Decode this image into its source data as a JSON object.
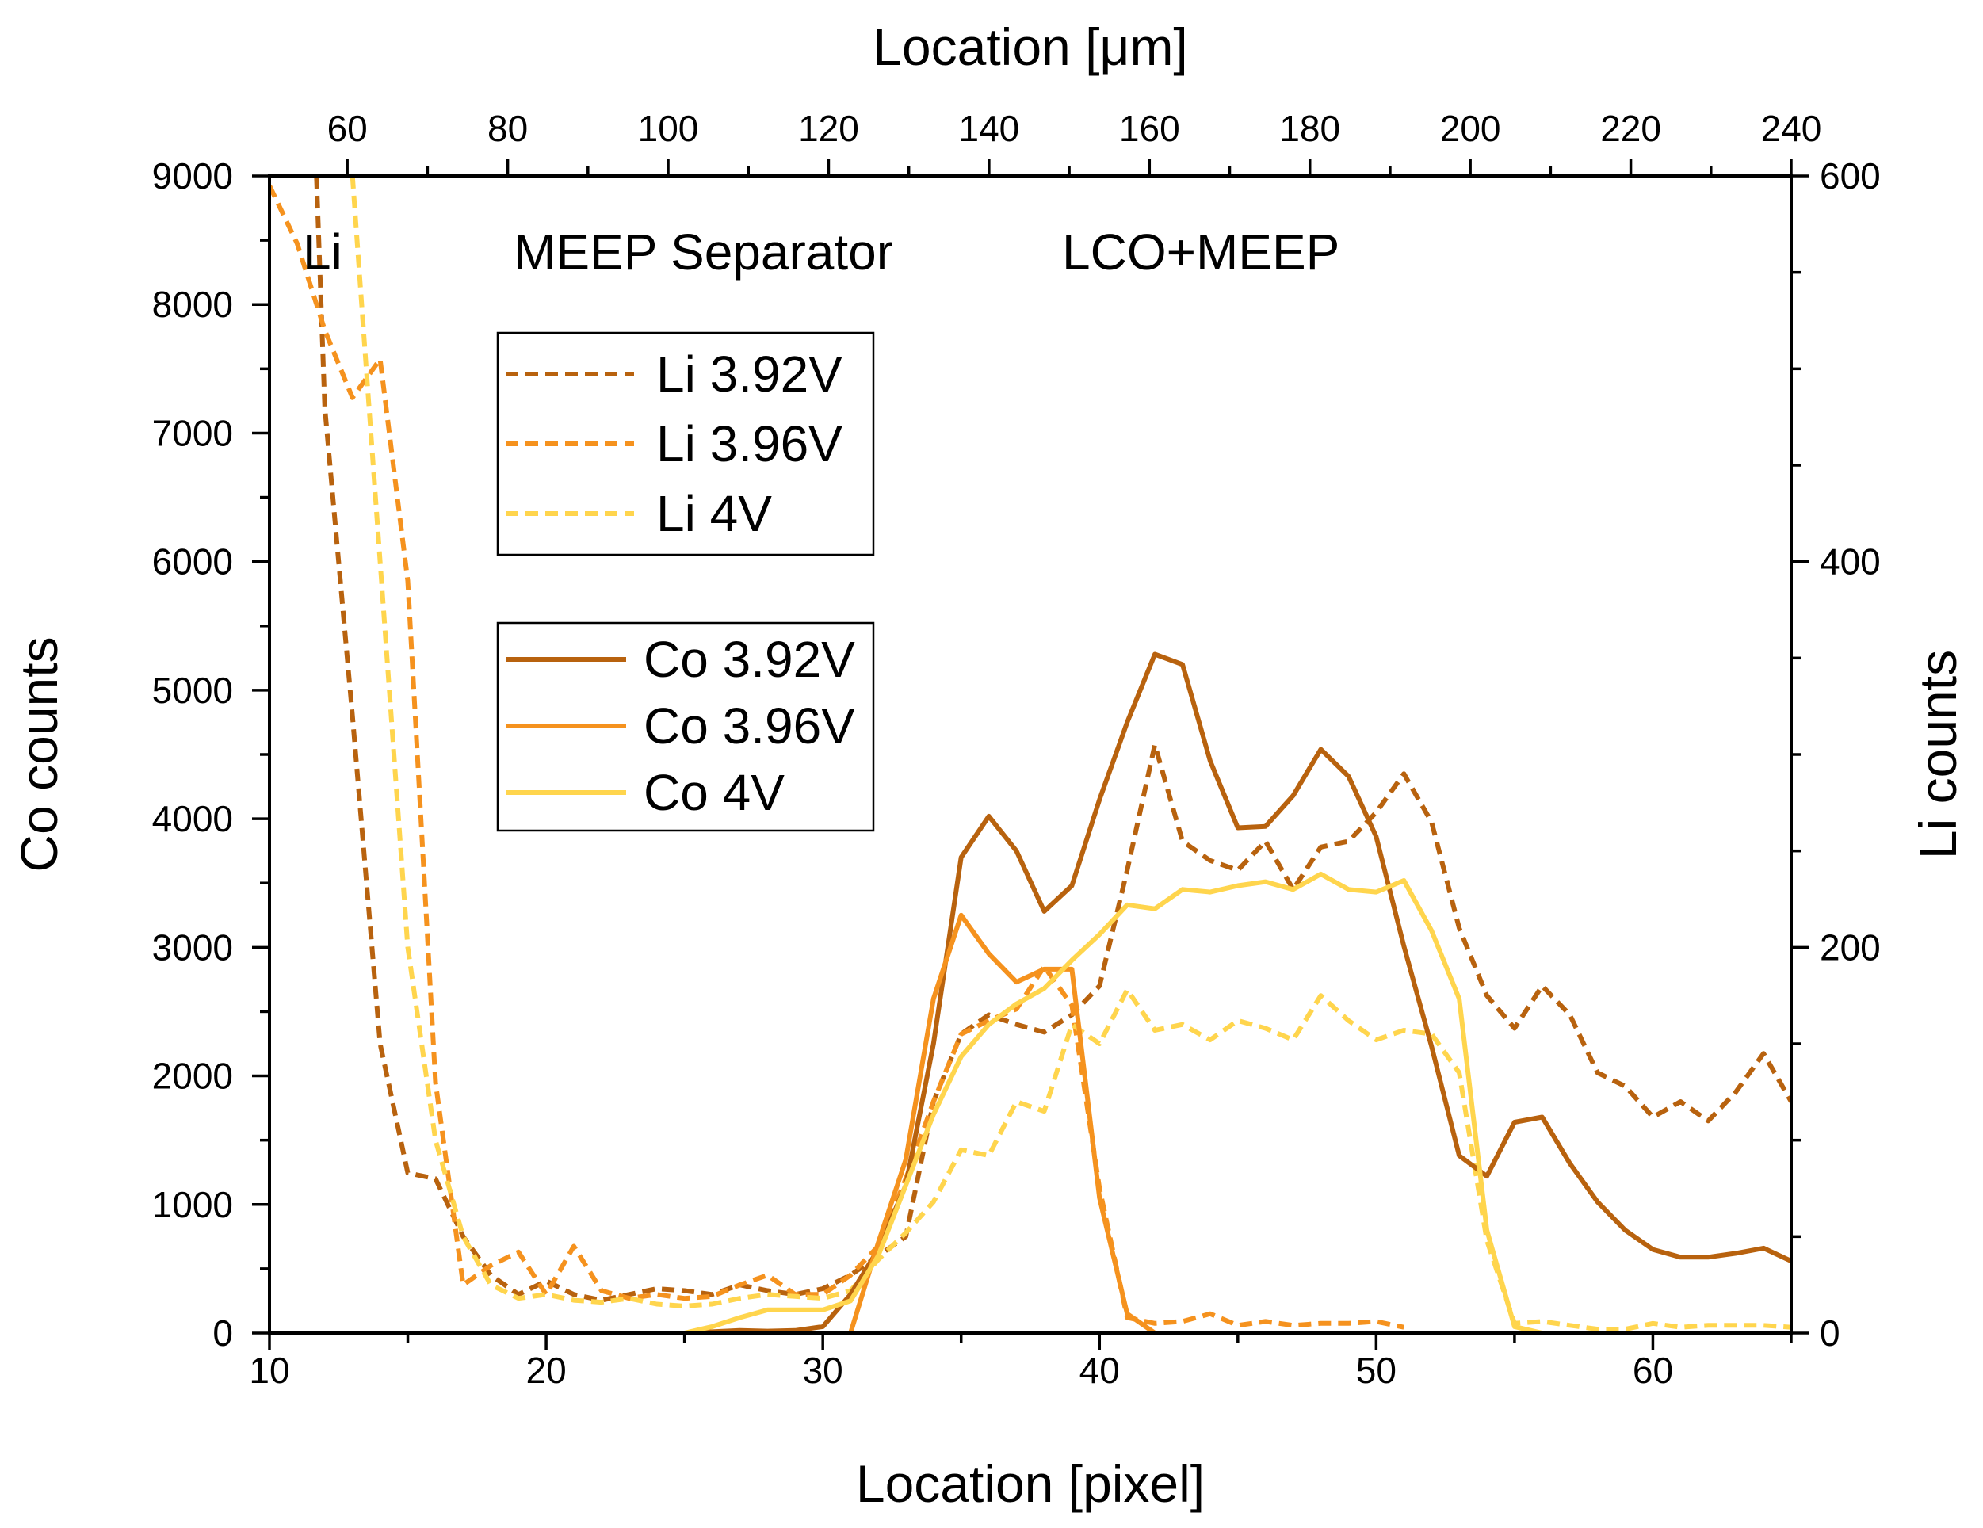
{
  "chart_data": {
    "type": "line",
    "xlabel": "Location [pixel]",
    "x2label": "Location [μm]",
    "ylabel": "Co counts",
    "y2label": "Li counts",
    "xlim": [
      10,
      65
    ],
    "x2lim": [
      50.3,
      240
    ],
    "ylim": [
      0,
      9000
    ],
    "y2lim": [
      0,
      600
    ],
    "x_ticks": [
      "10",
      "20",
      "30",
      "40",
      "50",
      "60"
    ],
    "x2_ticks": [
      "60",
      "80",
      "100",
      "120",
      "140",
      "160",
      "180",
      "200",
      "220",
      "240"
    ],
    "y_ticks": [
      "0",
      "1000",
      "2000",
      "3000",
      "4000",
      "5000",
      "6000",
      "7000",
      "8000",
      "9000"
    ],
    "y2_ticks": [
      "0",
      "200",
      "400",
      "600"
    ],
    "region_labels": [
      "Li",
      "MEEP Separator",
      "LCO+MEEP"
    ],
    "colors": {
      "v392": "#b8620e",
      "v396": "#f5921e",
      "v4": "#ffd54d"
    },
    "legend_li": [
      {
        "label": "Li 3.92V",
        "color": "#b8620e",
        "style": "dashed"
      },
      {
        "label": "Li 3.96V",
        "color": "#f5921e",
        "style": "dashed"
      },
      {
        "label": "Li 4V",
        "color": "#ffd54d",
        "style": "dashed"
      }
    ],
    "legend_co": [
      {
        "label": "Co 3.92V",
        "color": "#b8620e",
        "style": "solid"
      },
      {
        "label": "Co 3.96V",
        "color": "#f5921e",
        "style": "solid"
      },
      {
        "label": "Co 4V",
        "color": "#ffd54d",
        "style": "solid"
      }
    ],
    "series": [
      {
        "name": "Co 3.92V",
        "axis": "left",
        "color": "#b8620e",
        "style": "solid",
        "x": [
          10,
          11,
          12,
          13,
          14,
          15,
          16,
          17,
          18,
          19,
          20,
          21,
          22,
          23,
          24,
          25,
          26,
          27,
          28,
          29,
          30,
          31,
          32,
          33,
          34,
          35,
          36,
          37,
          38,
          39,
          40,
          41,
          42,
          43,
          44,
          45,
          46,
          47,
          48,
          49,
          50,
          51,
          52,
          53,
          54,
          55,
          56,
          57,
          58,
          59,
          60,
          61,
          62,
          63,
          64,
          65
        ],
        "y": [
          0,
          0,
          0,
          0,
          0,
          0,
          0,
          0,
          0,
          0,
          0,
          0,
          0,
          0,
          0,
          0,
          10,
          20,
          15,
          20,
          50,
          300,
          650,
          1150,
          2250,
          3700,
          4020,
          3750,
          3280,
          3480,
          4150,
          4750,
          5280,
          5200,
          4450,
          3930,
          3940,
          4180,
          4540,
          4330,
          3860,
          3010,
          2230,
          1380,
          1220,
          1640,
          1680,
          1320,
          1020,
          800,
          650,
          590,
          590,
          620,
          660,
          560
        ]
      },
      {
        "name": "Co 3.96V",
        "axis": "left",
        "color": "#f5921e",
        "style": "solid",
        "x": [
          10,
          11,
          12,
          13,
          14,
          15,
          16,
          17,
          18,
          19,
          20,
          21,
          22,
          23,
          24,
          25,
          26,
          27,
          28,
          29,
          30,
          31,
          32,
          33,
          34,
          35,
          36,
          37,
          38,
          39,
          40,
          41,
          42,
          43,
          44,
          45,
          46,
          47,
          48,
          49,
          50,
          51
        ],
        "y": [
          0,
          0,
          0,
          0,
          0,
          0,
          0,
          0,
          0,
          0,
          0,
          0,
          0,
          0,
          0,
          0,
          0,
          0,
          0,
          0,
          0,
          0,
          700,
          1350,
          2600,
          3250,
          2950,
          2730,
          2830,
          2830,
          1050,
          150,
          0,
          0,
          0,
          0,
          0,
          0,
          0,
          0,
          0,
          0
        ]
      },
      {
        "name": "Co 4V",
        "axis": "left",
        "color": "#ffd54d",
        "style": "solid",
        "x": [
          10,
          11,
          12,
          13,
          14,
          15,
          16,
          17,
          18,
          19,
          20,
          21,
          22,
          23,
          24,
          25,
          26,
          27,
          28,
          29,
          30,
          31,
          32,
          33,
          34,
          35,
          36,
          37,
          38,
          39,
          40,
          41,
          42,
          43,
          44,
          45,
          46,
          47,
          48,
          49,
          50,
          51,
          52,
          53,
          54,
          55,
          56,
          57,
          58,
          59,
          60,
          61,
          62,
          63,
          64,
          65
        ],
        "y": [
          0,
          0,
          0,
          0,
          0,
          0,
          0,
          0,
          0,
          0,
          0,
          0,
          0,
          0,
          0,
          0,
          50,
          120,
          180,
          180,
          180,
          250,
          600,
          1150,
          1700,
          2150,
          2400,
          2560,
          2680,
          2900,
          3100,
          3330,
          3300,
          3450,
          3430,
          3480,
          3510,
          3450,
          3570,
          3450,
          3430,
          3520,
          3130,
          2600,
          800,
          50,
          0,
          0,
          0,
          0,
          0,
          0,
          0,
          0,
          0,
          0
        ]
      },
      {
        "name": "Li 3.92V",
        "axis": "right",
        "color": "#b8620e",
        "style": "dashed",
        "x": [
          11.7,
          12,
          13,
          14,
          15,
          16,
          17,
          18,
          19,
          20,
          21,
          22,
          23,
          24,
          25,
          26,
          27,
          28,
          29,
          30,
          31,
          32,
          33,
          34,
          35,
          36,
          37,
          38,
          39,
          40,
          41,
          42,
          43,
          44,
          45,
          46,
          47,
          48,
          49,
          50,
          51,
          52,
          53,
          54,
          55,
          56,
          57,
          58,
          59,
          60,
          61,
          62,
          63,
          64,
          65
        ],
        "y": [
          600,
          480,
          320,
          150,
          83,
          80,
          50,
          30,
          20,
          27,
          20,
          17,
          20,
          23,
          22,
          20,
          25,
          22,
          20,
          23,
          30,
          40,
          50,
          120,
          155,
          165,
          160,
          156,
          165,
          180,
          240,
          305,
          255,
          245,
          240,
          255,
          230,
          252,
          255,
          270,
          290,
          265,
          210,
          175,
          158,
          180,
          165,
          135,
          128,
          112,
          120,
          110,
          125,
          145,
          120
        ]
      },
      {
        "name": "Li 3.96V",
        "axis": "right",
        "color": "#f5921e",
        "style": "dashed",
        "x": [
          10,
          11,
          12,
          13,
          14,
          15,
          16,
          17,
          18,
          19,
          20,
          21,
          22,
          23,
          24,
          25,
          26,
          27,
          28,
          29,
          30,
          31,
          32,
          33,
          34,
          35,
          36,
          37,
          38,
          39,
          40,
          41,
          42,
          43,
          44,
          45,
          46,
          47,
          48,
          49,
          50,
          51
        ],
        "y": [
          595,
          565,
          520,
          485,
          505,
          390,
          130,
          25,
          35,
          42,
          20,
          45,
          22,
          18,
          20,
          18,
          19,
          25,
          30,
          20,
          20,
          30,
          45,
          80,
          120,
          155,
          162,
          168,
          190,
          170,
          75,
          8,
          5,
          6,
          10,
          4,
          6,
          4,
          5,
          5,
          6,
          3
        ]
      },
      {
        "name": "Li 4V",
        "axis": "right",
        "color": "#ffd54d",
        "style": "dashed",
        "x": [
          13,
          14,
          15,
          16,
          17,
          18,
          19,
          20,
          21,
          22,
          23,
          24,
          25,
          26,
          27,
          28,
          29,
          30,
          31,
          32,
          33,
          34,
          35,
          36,
          37,
          38,
          39,
          40,
          41,
          42,
          43,
          44,
          45,
          46,
          47,
          48,
          49,
          50,
          51,
          52,
          53,
          54,
          55,
          56,
          57,
          58,
          59,
          60,
          61,
          62,
          63,
          64,
          65
        ],
        "y": [
          600,
          400,
          200,
          100,
          50,
          25,
          18,
          20,
          17,
          16,
          18,
          15,
          14,
          15,
          18,
          20,
          19,
          18,
          22,
          38,
          52,
          68,
          95,
          92,
          120,
          115,
          160,
          150,
          178,
          157,
          160,
          152,
          162,
          158,
          152,
          175,
          162,
          152,
          157,
          155,
          135,
          48,
          5,
          6,
          4,
          2,
          2,
          5,
          3,
          4,
          4,
          4,
          3
        ]
      }
    ]
  }
}
